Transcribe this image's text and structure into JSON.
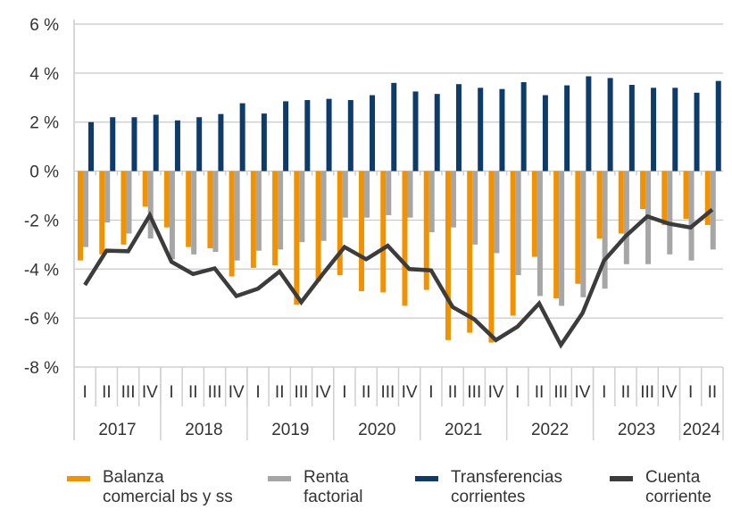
{
  "chart_data": {
    "type": "bar",
    "title": "",
    "xlabel": "",
    "ylabel": "",
    "ylim": [
      -8,
      6
    ],
    "yticks": [
      6,
      4,
      2,
      0,
      -2,
      -4,
      -6,
      -8
    ],
    "ytick_labels": [
      "6 %",
      "4 %",
      "2 %",
      "0 %",
      "-2 %",
      "-4 %",
      "-6 %",
      "-8 %"
    ],
    "grid": true,
    "legend_position": "bottom",
    "years": [
      {
        "label": "2017",
        "quarters": 4
      },
      {
        "label": "2018",
        "quarters": 4
      },
      {
        "label": "2019",
        "quarters": 4
      },
      {
        "label": "2020",
        "quarters": 4
      },
      {
        "label": "2021",
        "quarters": 4
      },
      {
        "label": "2022",
        "quarters": 4
      },
      {
        "label": "2023",
        "quarters": 4
      },
      {
        "label": "2024",
        "quarters": 2
      }
    ],
    "categories": [
      "I",
      "II",
      "III",
      "IV",
      "I",
      "II",
      "III",
      "IV",
      "I",
      "II",
      "III",
      "IV",
      "I",
      "II",
      "III",
      "IV",
      "I",
      "II",
      "III",
      "IV",
      "I",
      "II",
      "III",
      "IV",
      "I",
      "II",
      "III",
      "IV",
      "I",
      "II"
    ],
    "series": [
      {
        "name": "Balanza comercial bs y ss",
        "type": "bar",
        "color": "#F39200",
        "values": [
          -3.65,
          -3.4,
          -3.0,
          -1.45,
          -2.3,
          -3.1,
          -3.15,
          -4.3,
          -3.95,
          -3.85,
          -5.45,
          -4.5,
          -4.25,
          -4.9,
          -4.95,
          -5.5,
          -4.85,
          -6.9,
          -6.6,
          -7.0,
          -5.9,
          -3.5,
          -5.2,
          -4.6,
          -2.75,
          -2.55,
          -1.55,
          -2.2,
          -1.95,
          -2.2
        ]
      },
      {
        "name": "Renta factorial",
        "type": "bar",
        "color": "#A6A6A6",
        "values": [
          -3.1,
          -2.1,
          -2.55,
          -2.75,
          -3.6,
          -3.4,
          -3.3,
          -3.65,
          -3.25,
          -3.2,
          -2.9,
          -2.85,
          -1.9,
          -1.9,
          -1.8,
          -1.9,
          -2.5,
          -2.3,
          -3.0,
          -3.35,
          -4.25,
          -5.1,
          -5.5,
          -5.15,
          -4.8,
          -3.8,
          -3.8,
          -3.4,
          -3.65,
          -3.2
        ]
      },
      {
        "name": "Transferencias corrientes",
        "type": "bar",
        "color": "#0D3C6B",
        "values": [
          2.0,
          2.2,
          2.2,
          2.3,
          2.07,
          2.2,
          2.33,
          2.77,
          2.35,
          2.85,
          2.9,
          2.95,
          2.9,
          3.1,
          3.6,
          3.25,
          3.15,
          3.55,
          3.4,
          3.35,
          3.63,
          3.1,
          3.5,
          3.87,
          3.8,
          3.52,
          3.4,
          3.4,
          3.2,
          3.68
        ]
      },
      {
        "name": "Cuenta corriente",
        "type": "line",
        "color": "#3C3C3C",
        "values": [
          -4.65,
          -3.25,
          -3.27,
          -1.8,
          -3.7,
          -4.2,
          -3.97,
          -5.1,
          -4.8,
          -4.1,
          -5.35,
          -4.2,
          -3.1,
          -3.6,
          -3.05,
          -4.0,
          -4.05,
          -5.55,
          -6.05,
          -6.9,
          -6.35,
          -5.4,
          -7.1,
          -5.8,
          -3.65,
          -2.65,
          -1.85,
          -2.15,
          -2.3,
          -1.57
        ]
      }
    ]
  },
  "legend": [
    {
      "line1": "Balanza",
      "line2": "comercial bs y ss",
      "color": "#F39200"
    },
    {
      "line1": "Renta",
      "line2": "factorial",
      "color": "#A6A6A6"
    },
    {
      "line1": "Transferencias",
      "line2": "corrientes",
      "color": "#0D3C6B"
    },
    {
      "line1": "Cuenta",
      "line2": "corriente",
      "color": "#3C3C3C"
    }
  ]
}
